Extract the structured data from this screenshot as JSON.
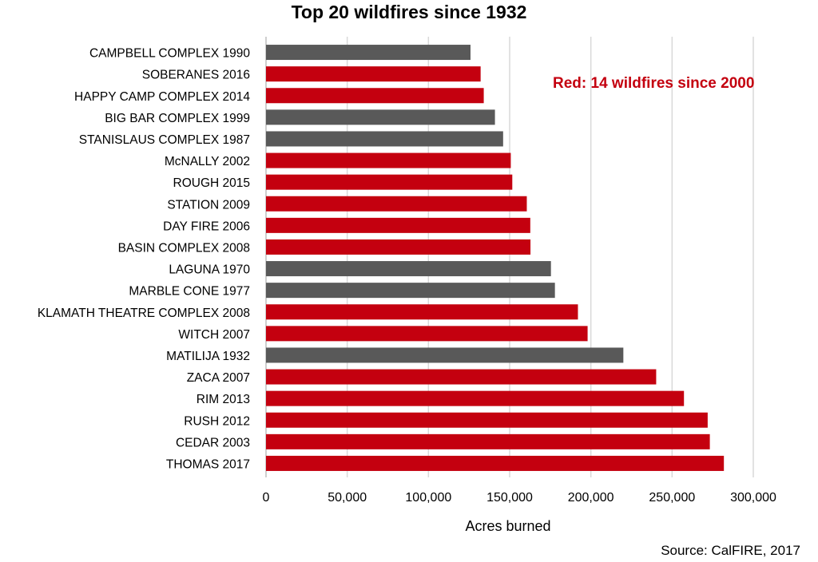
{
  "chart_data": {
    "type": "bar",
    "orientation": "horizontal",
    "title": "Top 20 wildfires since 1932",
    "xlabel": "Acres burned",
    "ylabel": "",
    "xlim": [
      0,
      300000
    ],
    "xticks": [
      "0",
      "50,000",
      "100,000",
      "150,000",
      "200,000",
      "250,000",
      "300,000"
    ],
    "grid": "vertical",
    "categories": [
      "CAMPBELL COMPLEX 1990",
      "SOBERANES 2016",
      "HAPPY CAMP COMPLEX 2014",
      "BIG BAR COMPLEX 1999",
      "STANISLAUS COMPLEX 1987",
      "McNALLY 2002",
      "ROUGH 2015",
      "STATION 2009",
      "DAY FIRE 2006",
      "BASIN COMPLEX 2008",
      "LAGUNA 1970",
      "MARBLE CONE 1977",
      "KLAMATH THEATRE COMPLEX 2008",
      "WITCH 2007",
      "MATILIJA 1932",
      "ZACA 2007",
      "RIM 2013",
      "RUSH 2012",
      "CEDAR 2003",
      "THOMAS 2017"
    ],
    "values": [
      125892,
      132127,
      134056,
      140948,
      145980,
      150696,
      151623,
      160557,
      162702,
      162818,
      175425,
      177866,
      192038,
      197990,
      220000,
      240207,
      257314,
      271911,
      273246,
      281893
    ],
    "since_2000": [
      false,
      true,
      true,
      false,
      false,
      true,
      true,
      true,
      true,
      true,
      false,
      false,
      true,
      true,
      false,
      true,
      true,
      true,
      true,
      true
    ],
    "colors": {
      "since_2000": "#c4000f",
      "before_2000": "#595959",
      "grid": "#d9d9d9"
    },
    "annotation": "Red: 14 wildfires since 2000",
    "source": "Source: CalFIRE, 2017"
  }
}
